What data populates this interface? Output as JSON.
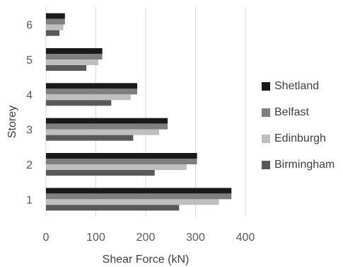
{
  "chart_data": {
    "type": "bar",
    "orientation": "horizontal",
    "title": "",
    "xlabel": "Shear Force (kN)",
    "ylabel": "Storey",
    "categories": [
      "1",
      "2",
      "3",
      "4",
      "5",
      "6"
    ],
    "xlim": [
      0,
      400
    ],
    "x_ticks": [
      "0",
      "100",
      "200",
      "300",
      "400"
    ],
    "grid": "vertical",
    "legend_position": "right",
    "series": [
      {
        "name": "Shetland",
        "color": "#1a1a1a",
        "values": [
          372,
          303,
          244,
          183,
          113,
          38
        ]
      },
      {
        "name": "Belfast",
        "color": "#7f7f7f",
        "values": [
          372,
          303,
          244,
          183,
          113,
          38
        ]
      },
      {
        "name": "Edinburgh",
        "color": "#bfbfbf",
        "values": [
          347,
          282,
          227,
          170,
          105,
          35
        ]
      },
      {
        "name": "Birmingham",
        "color": "#595959",
        "values": [
          267,
          218,
          175,
          131,
          81,
          27
        ]
      }
    ]
  }
}
